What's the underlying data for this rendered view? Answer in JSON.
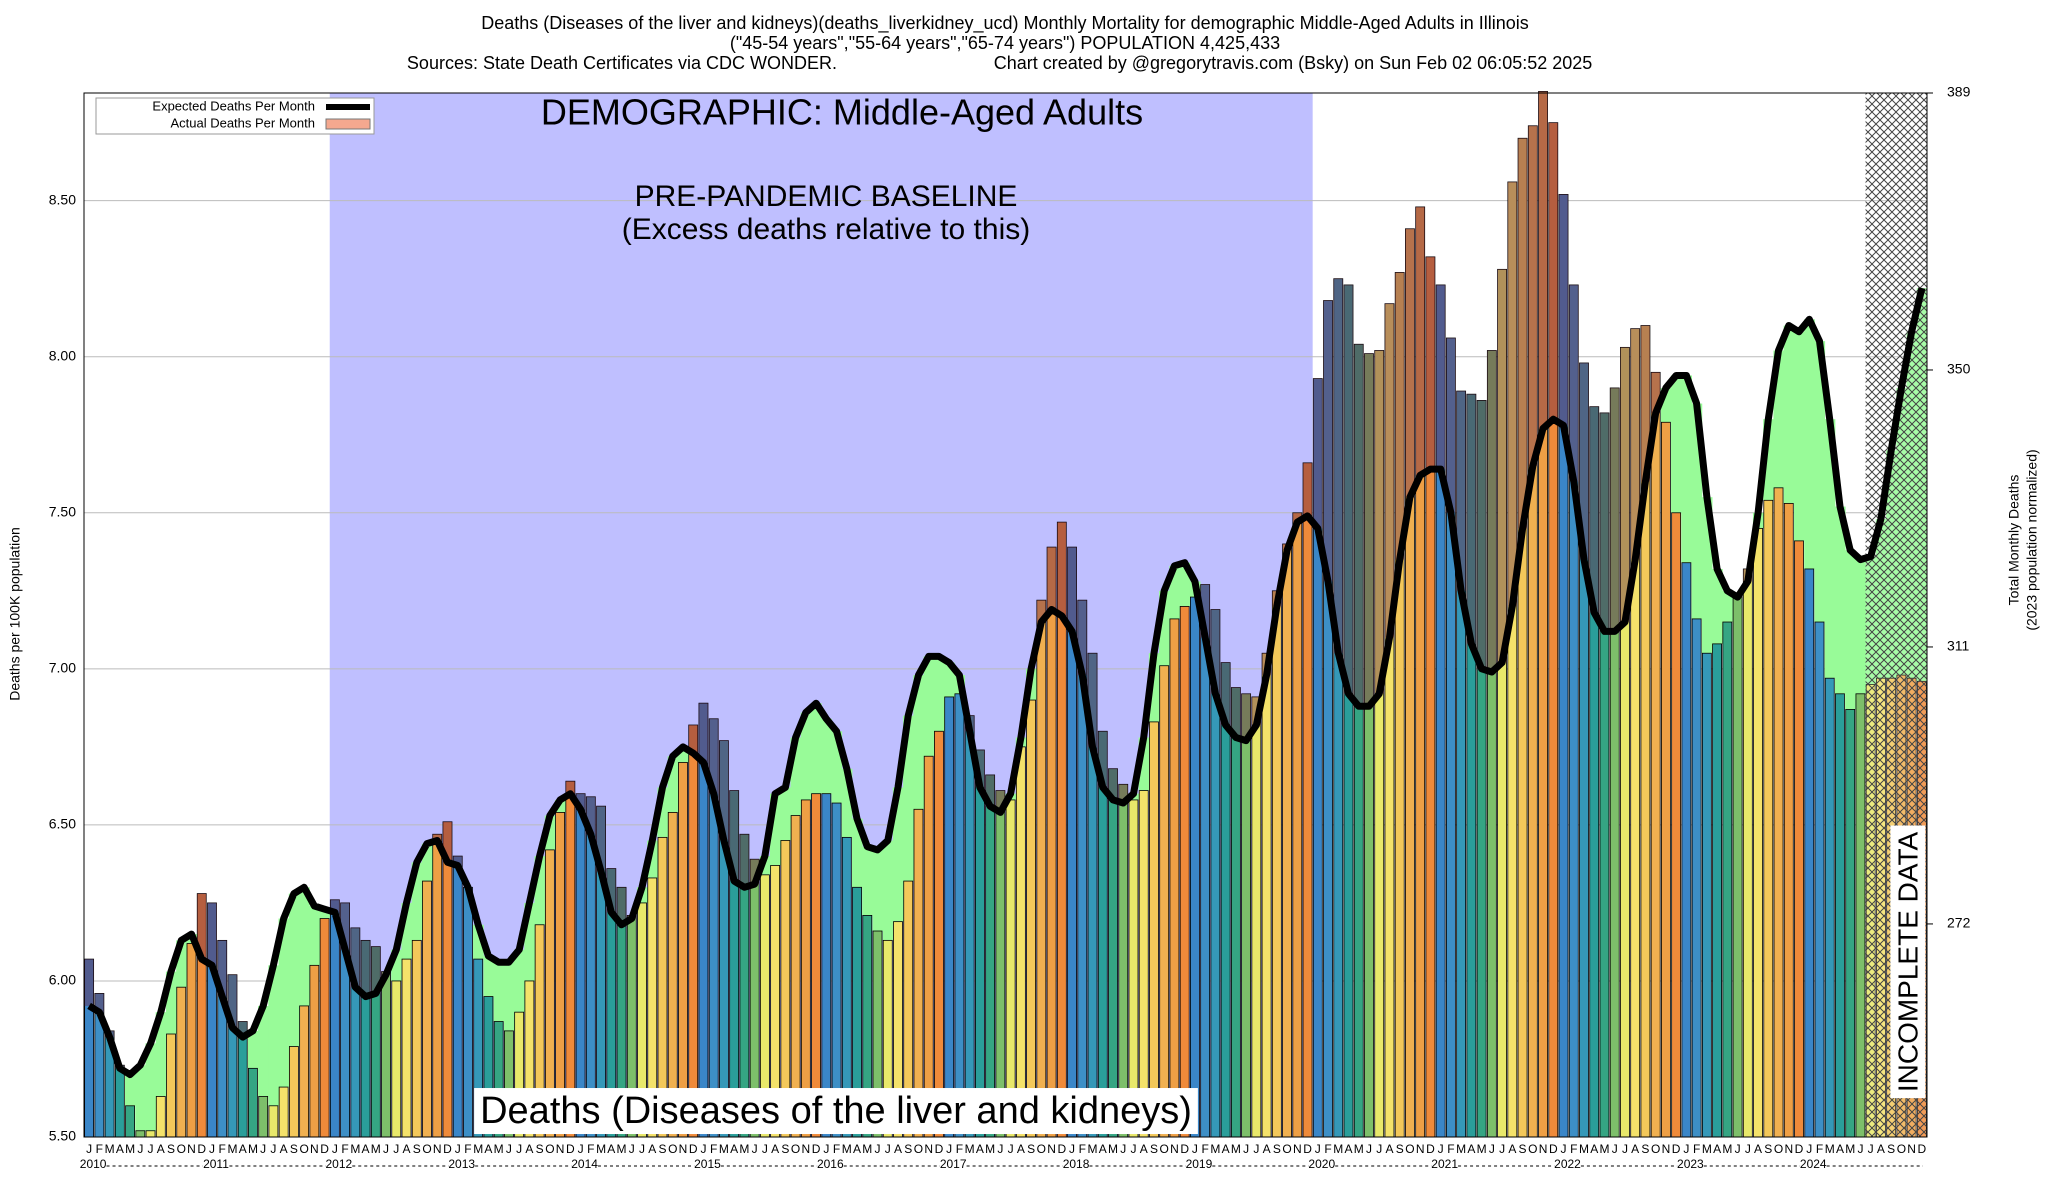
{
  "chart_data": {
    "type": "bar",
    "title": "Deaths (Diseases of the liver and kidneys)(deaths_liverkidney_ucd) Monthly Mortality for demographic Middle-Aged Adults in Illinois",
    "subtitle": "(\"45-54 years\",\"55-64 years\",\"65-74 years\") POPULATION 4,425,433",
    "source": "Sources: State Death Certificates via CDC WONDER.",
    "credit": "Chart created by @gregorytravis.com (Bsky) on Sun Feb 02 06:05:52 2025",
    "annotations": {
      "demographic": "DEMOGRAPHIC: Middle-Aged Adults",
      "baseline": "PRE-PANDEMIC BASELINE",
      "baseline_note": "(Excess deaths relative to this)",
      "cause": "Deaths (Diseases of the liver and kidneys)",
      "incomplete": "INCOMPLETE DATA"
    },
    "ylabel": "Deaths per 100K population",
    "y2label": [
      "Total Monthly Deaths",
      "(2023 population normalized)"
    ],
    "years": [
      2010,
      2011,
      2012,
      2013,
      2014,
      2015,
      2016,
      2017,
      2018,
      2019,
      2020,
      2021,
      2022,
      2023,
      2024
    ],
    "months": [
      "J",
      "F",
      "M",
      "A",
      "M",
      "J",
      "J",
      "A",
      "S",
      "O",
      "N",
      "D"
    ],
    "month_colors": [
      "#3a86c8",
      "#3d8fc6",
      "#3598b8",
      "#2a9e9a",
      "#35a583",
      "#7dbf6a",
      "#e8e86a",
      "#f4e26a",
      "#f3c85a",
      "#f0b050",
      "#ee9f45",
      "#ef8a3a"
    ],
    "baseline_range": [
      "2012-01",
      "2019-12"
    ],
    "incomplete_from": "2024-07",
    "baseline_color": "#bfbfff",
    "deficit_color": "#98fb98",
    "excess_color": "rgba(110,40,70,0.45)",
    "series": [
      {
        "name": "Expected Deaths Per Month",
        "color": "#000000",
        "values": [
          5.92,
          5.9,
          5.82,
          5.72,
          5.7,
          5.73,
          5.8,
          5.9,
          6.03,
          6.13,
          6.15,
          6.07,
          6.05,
          5.95,
          5.85,
          5.82,
          5.84,
          5.92,
          6.05,
          6.2,
          6.28,
          6.3,
          6.24,
          6.23,
          6.22,
          6.1,
          5.98,
          5.95,
          5.96,
          6.02,
          6.1,
          6.25,
          6.38,
          6.44,
          6.45,
          6.38,
          6.37,
          6.3,
          6.18,
          6.08,
          6.06,
          6.06,
          6.1,
          6.25,
          6.4,
          6.53,
          6.58,
          6.6,
          6.55,
          6.47,
          6.35,
          6.22,
          6.18,
          6.2,
          6.3,
          6.45,
          6.62,
          6.72,
          6.75,
          6.73,
          6.7,
          6.6,
          6.45,
          6.32,
          6.3,
          6.31,
          6.4,
          6.6,
          6.62,
          6.78,
          6.86,
          6.89,
          6.84,
          6.8,
          6.68,
          6.52,
          6.43,
          6.42,
          6.45,
          6.62,
          6.85,
          6.98,
          7.04,
          7.04,
          7.02,
          6.98,
          6.8,
          6.62,
          6.56,
          6.54,
          6.6,
          6.78,
          7.0,
          7.15,
          7.19,
          7.17,
          7.12,
          6.98,
          6.75,
          6.62,
          6.58,
          6.57,
          6.6,
          6.78,
          7.05,
          7.25,
          7.33,
          7.34,
          7.28,
          7.1,
          6.92,
          6.82,
          6.78,
          6.77,
          6.82,
          6.98,
          7.2,
          7.38,
          7.47,
          7.49,
          7.45,
          7.28,
          7.05,
          6.92,
          6.88,
          6.88,
          6.92,
          7.1,
          7.35,
          7.55,
          7.62,
          7.64,
          7.64,
          7.5,
          7.25,
          7.08,
          7.0,
          6.99,
          7.02,
          7.2,
          7.45,
          7.65,
          7.77,
          7.8,
          7.78,
          7.6,
          7.35,
          7.18,
          7.12,
          7.12,
          7.15,
          7.35,
          7.6,
          7.82,
          7.9,
          7.94,
          7.94,
          7.85,
          7.55,
          7.32,
          7.25,
          7.23,
          7.28,
          7.5,
          7.8,
          8.02,
          8.1,
          8.08,
          8.12,
          8.05,
          7.8,
          7.52,
          7.38,
          7.35,
          7.36,
          7.48,
          7.7,
          7.9,
          8.08,
          8.22
        ]
      },
      {
        "name": "Actual Deaths Per Month",
        "color": "#f4a88f",
        "values": [
          6.07,
          5.96,
          5.84,
          5.73,
          5.6,
          5.52,
          5.52,
          5.63,
          5.83,
          5.98,
          6.12,
          6.28,
          6.25,
          6.13,
          6.02,
          5.87,
          5.72,
          5.63,
          5.6,
          5.66,
          5.79,
          5.92,
          6.05,
          6.2,
          6.26,
          6.25,
          6.17,
          6.13,
          6.11,
          6.03,
          6.0,
          6.07,
          6.13,
          6.32,
          6.47,
          6.51,
          6.4,
          6.3,
          6.07,
          5.95,
          5.87,
          5.84,
          5.9,
          6.0,
          6.18,
          6.42,
          6.54,
          6.64,
          6.6,
          6.59,
          6.56,
          6.36,
          6.3,
          6.21,
          6.25,
          6.33,
          6.46,
          6.54,
          6.7,
          6.82,
          6.89,
          6.84,
          6.77,
          6.61,
          6.47,
          6.39,
          6.34,
          6.37,
          6.45,
          6.53,
          6.58,
          6.6,
          6.6,
          6.57,
          6.46,
          6.3,
          6.21,
          6.16,
          6.13,
          6.19,
          6.32,
          6.55,
          6.72,
          6.8,
          6.91,
          6.92,
          6.85,
          6.74,
          6.66,
          6.61,
          6.58,
          6.75,
          6.9,
          7.22,
          7.39,
          7.47,
          7.39,
          7.22,
          7.05,
          6.8,
          6.68,
          6.63,
          6.58,
          6.61,
          6.83,
          7.01,
          7.16,
          7.2,
          7.23,
          7.27,
          7.19,
          7.02,
          6.94,
          6.92,
          6.91,
          7.05,
          7.25,
          7.4,
          7.5,
          7.66,
          7.93,
          8.18,
          8.25,
          8.23,
          8.04,
          8.01,
          8.02,
          8.17,
          8.27,
          8.41,
          8.48,
          8.32,
          8.23,
          8.06,
          7.89,
          7.88,
          7.86,
          8.02,
          8.28,
          8.56,
          8.7,
          8.74,
          8.85,
          8.75,
          8.52,
          8.23,
          7.98,
          7.84,
          7.82,
          7.9,
          8.03,
          8.09,
          8.1,
          7.95,
          7.79,
          7.5,
          7.34,
          7.16,
          7.05,
          7.08,
          7.15,
          7.24,
          7.32,
          7.45,
          7.54,
          7.58,
          7.53,
          7.41,
          7.32,
          7.15,
          6.97,
          6.92,
          6.87,
          6.92,
          6.95,
          6.97,
          6.97,
          6.98,
          6.97,
          6.96
        ]
      }
    ],
    "ylim": [
      5.5,
      8.845
    ],
    "yticks": [
      {
        "value": 5.5,
        "label": "5.50"
      },
      {
        "value": 6.0,
        "label": "6.00"
      },
      {
        "value": 6.5,
        "label": "6.50"
      },
      {
        "value": 7.0,
        "label": "7.00"
      },
      {
        "value": 7.5,
        "label": "7.50"
      },
      {
        "value": 8.0,
        "label": "8.00"
      },
      {
        "value": 8.5,
        "label": "8.50"
      }
    ],
    "y2lim": [
      242,
      389
    ],
    "y2ticks": [
      272,
      311,
      350,
      389
    ],
    "grid": true
  }
}
